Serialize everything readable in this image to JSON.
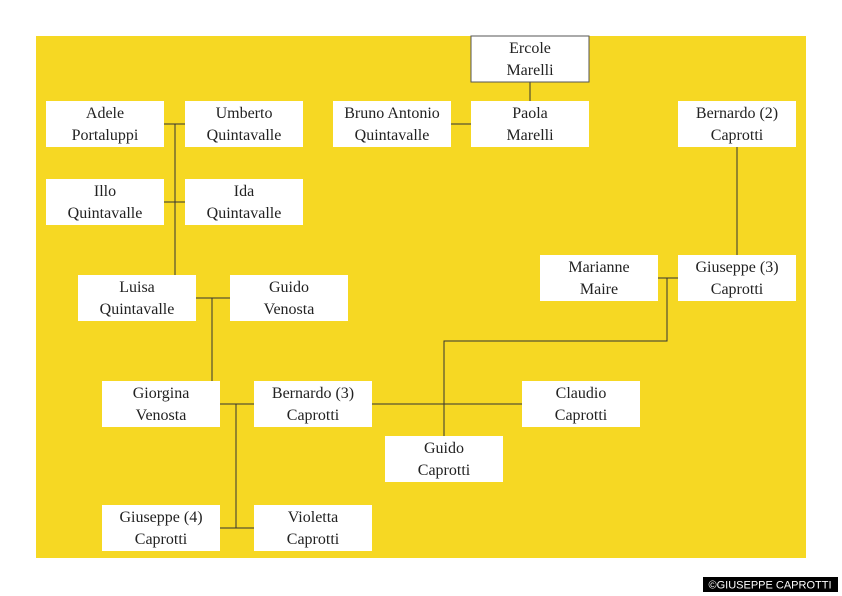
{
  "nodes": [
    {
      "lines": [
        "Ercole",
        "Marelli"
      ]
    },
    {
      "lines": [
        "Adele",
        "Portaluppi"
      ]
    },
    {
      "lines": [
        "Umberto",
        "Quintavalle"
      ]
    },
    {
      "lines": [
        "Bruno Antonio",
        "Quintavalle"
      ]
    },
    {
      "lines": [
        "Paola",
        "Marelli"
      ]
    },
    {
      "lines": [
        "Bernardo (2)",
        "Caprotti"
      ]
    },
    {
      "lines": [
        "Illo",
        "Quintavalle"
      ]
    },
    {
      "lines": [
        "Ida",
        "Quintavalle"
      ]
    },
    {
      "lines": [
        "Marianne",
        "Maire"
      ]
    },
    {
      "lines": [
        "Giuseppe (3)",
        "Caprotti"
      ]
    },
    {
      "lines": [
        "Luisa",
        "Quintavalle"
      ]
    },
    {
      "lines": [
        "Guido",
        "Venosta"
      ]
    },
    {
      "lines": [
        "Giorgina",
        "Venosta"
      ]
    },
    {
      "lines": [
        "Bernardo (3)",
        "Caprotti"
      ]
    },
    {
      "lines": [
        "Claudio",
        "Caprotti"
      ]
    },
    {
      "lines": [
        "Guido",
        "Caprotti"
      ]
    },
    {
      "lines": [
        "Giuseppe (4)",
        "Caprotti"
      ]
    },
    {
      "lines": [
        "Violetta",
        "Caprotti"
      ]
    }
  ],
  "credit": "©GIUSEPPE CAPROTTI"
}
